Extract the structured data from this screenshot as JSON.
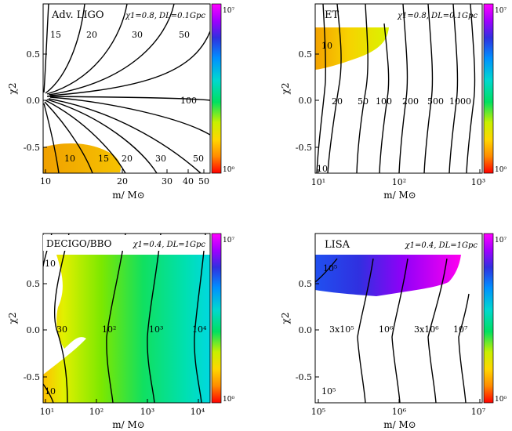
{
  "chart_data": [
    {
      "type": "heatmap",
      "title": "Adv. LIGO",
      "params": "χ1=0.8, DL=0.1Gpc",
      "xlabel": "m/ M⊙",
      "ylabel": "χ2",
      "xscale": "log",
      "xlim": [
        10,
        50
      ],
      "ylim": [
        -0.85,
        0.95
      ],
      "xticks": [
        "10",
        "20",
        "30",
        "40",
        "50"
      ],
      "yticks": [
        "-0.5",
        "0.0",
        "0.5"
      ],
      "colorbar": {
        "min_label": "10⁰",
        "max_label": "10⁷",
        "scale": "log",
        "range": [
          0,
          7
        ]
      },
      "contour_labels": [
        "15",
        "20",
        "30",
        "50",
        "100",
        "10",
        "15",
        "20",
        "30",
        "50"
      ],
      "region": {
        "color_level": 1.6,
        "approx_extent": {
          "m": [
            10,
            22
          ],
          "chi2": [
            -0.82,
            -0.48
          ]
        }
      }
    },
    {
      "type": "heatmap",
      "title": "ET",
      "params": "χ1=0.8, DL=0.1Gpc",
      "xlabel": "m/ M⊙",
      "ylabel": "χ2",
      "xscale": "log",
      "xlim": [
        10,
        1000
      ],
      "ylim": [
        -0.85,
        0.95
      ],
      "xticks": [
        "10¹",
        "10²",
        "10³"
      ],
      "yticks": [
        "-0.5",
        "0.0",
        "0.5"
      ],
      "colorbar": {
        "min_label": "10⁰",
        "max_label": "10⁷",
        "scale": "log",
        "range": [
          0,
          7
        ]
      },
      "contour_labels": [
        "10",
        "20",
        "50",
        "100",
        "200",
        "500",
        "1000",
        "10"
      ],
      "region": {
        "color_level": 2.0,
        "approx_extent": {
          "m": [
            10,
            75
          ],
          "chi2": [
            0.32,
            0.8
          ]
        }
      }
    },
    {
      "type": "heatmap",
      "title": "DECIGO/BBO",
      "params": "χ1=0.4, DL=1Gpc",
      "xlabel": "m/ M⊙",
      "ylabel": "χ2",
      "xscale": "log",
      "xlim": [
        10,
        25000
      ],
      "ylim": [
        -0.85,
        0.95
      ],
      "xticks": [
        "10¹",
        "10²",
        "10³",
        "10⁴"
      ],
      "yticks": [
        "-0.5",
        "0.0",
        "0.5"
      ],
      "colorbar": {
        "min_label": "10⁰",
        "max_label": "10⁷",
        "scale": "log",
        "range": [
          0,
          7
        ]
      },
      "contour_labels": [
        "10",
        "30",
        "10²",
        "10³",
        "10⁴",
        "10"
      ],
      "region": {
        "color_level_range": [
          1.5,
          3.6
        ],
        "approx_extent": {
          "m": [
            10,
            25000
          ],
          "chi2": [
            -0.85,
            0.8
          ]
        }
      }
    },
    {
      "type": "heatmap",
      "title": "LISA",
      "params": "χ1=0.4, DL=1Gpc",
      "xlabel": "m/ M⊙",
      "ylabel": "χ2",
      "xscale": "log",
      "xlim": [
        100000,
        10000000
      ],
      "ylim": [
        -0.85,
        0.95
      ],
      "xticks": [
        "10⁵",
        "10⁶",
        "10⁷"
      ],
      "yticks": [
        "-0.5",
        "0.0",
        "0.5"
      ],
      "colorbar": {
        "min_label": "10⁰",
        "max_label": "10⁷",
        "scale": "log",
        "range": [
          0,
          7
        ]
      },
      "contour_labels": [
        "10⁵",
        "3x10⁵",
        "10⁶",
        "3x10⁶",
        "10⁷",
        "10⁵"
      ],
      "region": {
        "color_level_range": [
          5.3,
          6.6
        ],
        "approx_extent": {
          "m": [
            100000,
            6000000
          ],
          "chi2": [
            0.28,
            0.8
          ]
        }
      }
    }
  ]
}
